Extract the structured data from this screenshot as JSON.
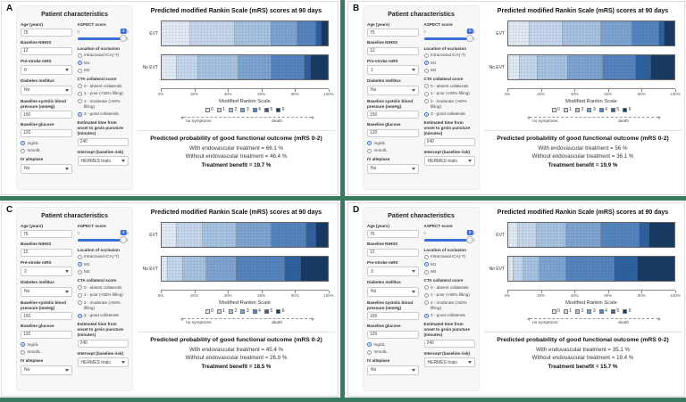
{
  "shared": {
    "app": {
      "sidebar_title": "Patient characteristics",
      "chart_title": "Predicted modified Rankin Scale (mRS) scores at 90 days",
      "results_heading": "Predicted probability of good functional outcome (mRS 0-2)",
      "xlabel": "Modified Rankin Scale",
      "arrow_left_label": "no symptoms",
      "arrow_right_label": "death"
    },
    "fields": {
      "age": "Age (years)",
      "nihss": "Baseline NIHSS",
      "prestroke": "Pre-stroke mRS",
      "diabetes": "Diabetes mellitus",
      "sbp": "Baseline systolic blood pressure (mmHg)",
      "glucose": "Baseline glucose",
      "iv": "IV alteplase",
      "aspect": "ASPECT score",
      "aspect_min": "0",
      "aspect_max": "10",
      "occlusion": "Location of occlusion",
      "cta": "CTA collateral score",
      "time": "Estimated time from onset to groin puncture (minutes)",
      "intercept": "Intercept (baseline risk)"
    },
    "unit_options": [
      "mg/dL",
      "mmol/L"
    ],
    "unit_selected": 0,
    "occlusion_options": [
      "Intracranial ICA(-T)",
      "M1",
      "M2"
    ],
    "occlusion_selected": 1,
    "cta_options": [
      "0 - absent collaterals",
      "1 - poor (<50% filling)",
      "2 - moderate (>50% filling)",
      "3 - good collaterals"
    ],
    "cta_selected": 3,
    "bar_labels": [
      "EVT",
      "No EVT"
    ],
    "axis_ticks": [
      "0%",
      "20%",
      "40%",
      "60%",
      "80%",
      "100%"
    ],
    "legend_labels": [
      "0",
      "1",
      "2",
      "3",
      "4",
      "5",
      "6"
    ],
    "mrs_colors": [
      "#dfe8f4",
      "#c4d5eb",
      "#a4c1e0",
      "#7ca2d0",
      "#5583bd",
      "#2e5f9e",
      "#173a63"
    ],
    "accent_blue": "#3a6fd8",
    "separator_green": "#3a7a5f"
  },
  "panels": [
    {
      "label": "A",
      "patient": {
        "age": "75",
        "nihss": "12",
        "prestroke_mrs": "0",
        "diabetes": "No",
        "sbp": "150",
        "glucose": "120",
        "iv_alteplase": "No",
        "aspect": "9",
        "onset_to_groin": "240",
        "intercept": "HERMES trials"
      },
      "results": {
        "with_line": "With endovascular treatment = 66.1 %",
        "without_line": "Without endovascular treatment = 46.4 %",
        "benefit_line": "Treatment benefit = 19.7 %"
      }
    },
    {
      "label": "B",
      "patient": {
        "age": "75",
        "nihss": "12",
        "prestroke_mrs": "1",
        "diabetes": "No",
        "sbp": "150",
        "glucose": "120",
        "iv_alteplase": "No",
        "aspect": "9",
        "onset_to_groin": "240",
        "intercept": "HERMES trials"
      },
      "results": {
        "with_line": "With endovascular treatment = 56 %",
        "without_line": "Without endovascular treatment = 36.1 %",
        "benefit_line": "Treatment benefit = 19.9 %"
      }
    },
    {
      "label": "C",
      "patient": {
        "age": "75",
        "nihss": "12",
        "prestroke_mrs": "2",
        "diabetes": "No",
        "sbp": "150",
        "glucose": "120",
        "iv_alteplase": "No",
        "aspect": "9",
        "onset_to_groin": "240",
        "intercept": "HERMES trials"
      },
      "results": {
        "with_line": "With endovascular treatment = 45.4 %",
        "without_line": "Without endovascular treatment = 26.9 %",
        "benefit_line": "Treatment benefit = 18.5 %"
      }
    },
    {
      "label": "D",
      "patient": {
        "age": "75",
        "nihss": "12",
        "prestroke_mrs": "3",
        "diabetes": "No",
        "sbp": "150",
        "glucose": "120",
        "iv_alteplase": "No",
        "aspect": "9",
        "onset_to_groin": "240",
        "intercept": "HERMES trials"
      },
      "results": {
        "with_line": "With endovascular treatment = 35.1 %",
        "without_line": "Without endovascular treatment = 19.4 %",
        "benefit_line": "Treatment benefit = 15.7 %"
      }
    }
  ],
  "chart_data": [
    {
      "type": "bar",
      "stacked": true,
      "orientation": "horizontal",
      "units": "percent",
      "title": "Predicted modified Rankin Scale (mRS) scores at 90 days",
      "xlabel": "Modified Rankin Scale",
      "x_ticks": [
        "0%",
        "20%",
        "40%",
        "60%",
        "80%",
        "100%"
      ],
      "xlim": [
        0,
        100
      ],
      "categories": [
        "mRS 0",
        "mRS 1",
        "mRS 2",
        "mRS 3",
        "mRS 4",
        "mRS 5",
        "mRS 6"
      ],
      "series": [
        {
          "name": "EVT",
          "values": [
            17,
            27,
            22,
            16,
            11,
            3,
            4
          ]
        },
        {
          "name": "No EVT",
          "values": [
            9,
            13,
            24,
            20,
            20,
            4,
            10
          ]
        }
      ],
      "good_outcome_mrs02": {
        "evt": 66.1,
        "no_evt": 46.4,
        "benefit": 19.7
      }
    },
    {
      "type": "bar",
      "stacked": true,
      "orientation": "horizontal",
      "units": "percent",
      "title": "Predicted modified Rankin Scale (mRS) scores at 90 days",
      "xlabel": "Modified Rankin Scale",
      "x_ticks": [
        "0%",
        "20%",
        "40%",
        "60%",
        "80%",
        "100%"
      ],
      "xlim": [
        0,
        100
      ],
      "categories": [
        "mRS 0",
        "mRS 1",
        "mRS 2",
        "mRS 3",
        "mRS 4",
        "mRS 5",
        "mRS 6"
      ],
      "series": [
        {
          "name": "EVT",
          "values": [
            13,
            20,
            23,
            19,
            16,
            3,
            6
          ]
        },
        {
          "name": "No EVT",
          "values": [
            7,
            11,
            18,
            21,
            20,
            9,
            14
          ]
        }
      ],
      "good_outcome_mrs02": {
        "evt": 56,
        "no_evt": 36.1,
        "benefit": 19.9
      }
    },
    {
      "type": "bar",
      "stacked": true,
      "orientation": "horizontal",
      "units": "percent",
      "title": "Predicted modified Rankin Scale (mRS) scores at 90 days",
      "xlabel": "Modified Rankin Scale",
      "x_ticks": [
        "0%",
        "20%",
        "40%",
        "60%",
        "80%",
        "100%"
      ],
      "xlim": [
        0,
        100
      ],
      "categories": [
        "mRS 0",
        "mRS 1",
        "mRS 2",
        "mRS 3",
        "mRS 4",
        "mRS 5",
        "mRS 6"
      ],
      "series": [
        {
          "name": "EVT",
          "values": [
            9,
            16,
            20,
            21,
            21,
            6,
            7
          ]
        },
        {
          "name": "No EVT",
          "values": [
            4,
            9,
            14,
            18,
            29,
            10,
            16
          ]
        }
      ],
      "good_outcome_mrs02": {
        "evt": 45.4,
        "no_evt": 26.9,
        "benefit": 18.5
      }
    },
    {
      "type": "bar",
      "stacked": true,
      "orientation": "horizontal",
      "units": "percent",
      "title": "Predicted modified Rankin Scale (mRS) scores at 90 days",
      "xlabel": "Modified Rankin Scale",
      "x_ticks": [
        "0%",
        "20%",
        "40%",
        "60%",
        "80%",
        "100%"
      ],
      "xlim": [
        0,
        100
      ],
      "categories": [
        "mRS 0",
        "mRS 1",
        "mRS 2",
        "mRS 3",
        "mRS 4",
        "mRS 5",
        "mRS 6"
      ],
      "series": [
        {
          "name": "EVT",
          "values": [
            6,
            11,
            18,
            21,
            23,
            6,
            15
          ]
        },
        {
          "name": "No EVT",
          "values": [
            3,
            6,
            10,
            16,
            29,
            14,
            22
          ]
        }
      ],
      "good_outcome_mrs02": {
        "evt": 35.1,
        "no_evt": 19.4,
        "benefit": 15.7
      }
    }
  ]
}
